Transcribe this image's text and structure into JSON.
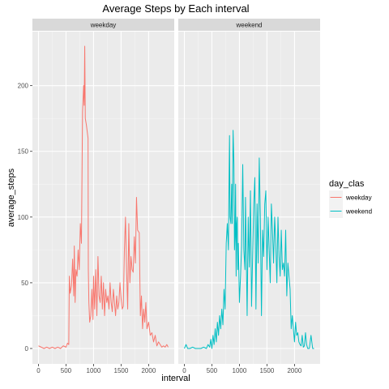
{
  "chart_data": {
    "type": "line",
    "title": "Average Steps by Each interval",
    "xlabel": "interval",
    "ylabel": "average_steps",
    "x_range": [
      0,
      2355
    ],
    "y_range": [
      0,
      230
    ],
    "x_ticks": [
      0,
      500,
      1000,
      1500,
      2000
    ],
    "y_ticks": [
      0,
      50,
      100,
      150,
      200
    ],
    "grid": true,
    "facets": [
      "weekday",
      "weekend"
    ],
    "legend": {
      "title": "day_clas",
      "position": "right"
    },
    "series": [
      {
        "name": "weekday",
        "facet": "weekday",
        "color": "#F8766D",
        "points": [
          [
            0,
            2
          ],
          [
            50,
            1
          ],
          [
            100,
            0
          ],
          [
            150,
            1
          ],
          [
            200,
            0
          ],
          [
            250,
            1
          ],
          [
            300,
            0
          ],
          [
            350,
            1
          ],
          [
            400,
            0
          ],
          [
            450,
            2
          ],
          [
            500,
            1
          ],
          [
            525,
            4
          ],
          [
            550,
            3
          ],
          [
            560,
            55
          ],
          [
            575,
            42
          ],
          [
            600,
            48
          ],
          [
            620,
            68
          ],
          [
            640,
            40
          ],
          [
            650,
            78
          ],
          [
            665,
            35
          ],
          [
            680,
            60
          ],
          [
            700,
            55
          ],
          [
            720,
            75
          ],
          [
            740,
            60
          ],
          [
            760,
            95
          ],
          [
            780,
            80
          ],
          [
            800,
            180
          ],
          [
            810,
            190
          ],
          [
            820,
            200
          ],
          [
            830,
            185
          ],
          [
            840,
            230
          ],
          [
            850,
            175
          ],
          [
            870,
            170
          ],
          [
            900,
            160
          ],
          [
            905,
            60
          ],
          [
            915,
            35
          ],
          [
            930,
            20
          ],
          [
            950,
            25
          ],
          [
            970,
            45
          ],
          [
            990,
            22
          ],
          [
            1000,
            55
          ],
          [
            1020,
            30
          ],
          [
            1040,
            60
          ],
          [
            1060,
            25
          ],
          [
            1080,
            70
          ],
          [
            1100,
            40
          ],
          [
            1120,
            35
          ],
          [
            1140,
            55
          ],
          [
            1160,
            30
          ],
          [
            1180,
            50
          ],
          [
            1200,
            25
          ],
          [
            1220,
            45
          ],
          [
            1240,
            35
          ],
          [
            1260,
            40
          ],
          [
            1280,
            30
          ],
          [
            1300,
            50
          ],
          [
            1320,
            35
          ],
          [
            1340,
            28
          ],
          [
            1360,
            45
          ],
          [
            1380,
            35
          ],
          [
            1400,
            25
          ],
          [
            1420,
            40
          ],
          [
            1440,
            30
          ],
          [
            1460,
            35
          ],
          [
            1480,
            50
          ],
          [
            1500,
            38
          ],
          [
            1520,
            30
          ],
          [
            1540,
            32
          ],
          [
            1560,
            75
          ],
          [
            1580,
            100
          ],
          [
            1600,
            60
          ],
          [
            1620,
            30
          ],
          [
            1640,
            95
          ],
          [
            1660,
            50
          ],
          [
            1680,
            70
          ],
          [
            1700,
            60
          ],
          [
            1720,
            58
          ],
          [
            1740,
            85
          ],
          [
            1760,
            65
          ],
          [
            1780,
            115
          ],
          [
            1800,
            90
          ],
          [
            1830,
            88
          ],
          [
            1850,
            25
          ],
          [
            1870,
            40
          ],
          [
            1890,
            15
          ],
          [
            1910,
            30
          ],
          [
            1930,
            20
          ],
          [
            1950,
            35
          ],
          [
            1970,
            15
          ],
          [
            2000,
            20
          ],
          [
            2030,
            10
          ],
          [
            2060,
            12
          ],
          [
            2090,
            5
          ],
          [
            2120,
            10
          ],
          [
            2150,
            2
          ],
          [
            2180,
            5
          ],
          [
            2210,
            3
          ],
          [
            2240,
            1
          ],
          [
            2270,
            2
          ],
          [
            2300,
            1
          ],
          [
            2330,
            3
          ],
          [
            2355,
            1
          ]
        ]
      },
      {
        "name": "weekend",
        "facet": "weekend",
        "color": "#00BFC4",
        "points": [
          [
            0,
            0
          ],
          [
            30,
            3
          ],
          [
            60,
            0
          ],
          [
            100,
            0
          ],
          [
            150,
            1
          ],
          [
            200,
            0
          ],
          [
            250,
            0
          ],
          [
            300,
            0
          ],
          [
            350,
            1
          ],
          [
            400,
            0
          ],
          [
            430,
            3
          ],
          [
            460,
            1
          ],
          [
            480,
            7
          ],
          [
            500,
            0
          ],
          [
            520,
            10
          ],
          [
            540,
            3
          ],
          [
            560,
            15
          ],
          [
            580,
            5
          ],
          [
            600,
            20
          ],
          [
            620,
            10
          ],
          [
            640,
            25
          ],
          [
            660,
            15
          ],
          [
            680,
            30
          ],
          [
            700,
            18
          ],
          [
            720,
            45
          ],
          [
            740,
            30
          ],
          [
            760,
            80
          ],
          [
            780,
            95
          ],
          [
            800,
            75
          ],
          [
            810,
            120
          ],
          [
            820,
            162
          ],
          [
            830,
            100
          ],
          [
            845,
            95
          ],
          [
            860,
            125
          ],
          [
            870,
            95
          ],
          [
            885,
            166
          ],
          [
            900,
            140
          ],
          [
            910,
            75
          ],
          [
            920,
            85
          ],
          [
            930,
            125
          ],
          [
            940,
            55
          ],
          [
            950,
            95
          ],
          [
            960,
            100
          ],
          [
            970,
            60
          ],
          [
            980,
            80
          ],
          [
            1000,
            35
          ],
          [
            1020,
            55
          ],
          [
            1040,
            78
          ],
          [
            1060,
            140
          ],
          [
            1080,
            75
          ],
          [
            1100,
            60
          ],
          [
            1110,
            115
          ],
          [
            1120,
            85
          ],
          [
            1140,
            25
          ],
          [
            1160,
            100
          ],
          [
            1180,
            62
          ],
          [
            1200,
            120
          ],
          [
            1220,
            32
          ],
          [
            1240,
            70
          ],
          [
            1260,
            110
          ],
          [
            1280,
            130
          ],
          [
            1300,
            30
          ],
          [
            1320,
            110
          ],
          [
            1340,
            65
          ],
          [
            1360,
            145
          ],
          [
            1380,
            100
          ],
          [
            1400,
            25
          ],
          [
            1420,
            90
          ],
          [
            1440,
            70
          ],
          [
            1460,
            110
          ],
          [
            1480,
            120
          ],
          [
            1500,
            60
          ],
          [
            1520,
            100
          ],
          [
            1540,
            75
          ],
          [
            1560,
            50
          ],
          [
            1580,
            110
          ],
          [
            1600,
            90
          ],
          [
            1620,
            65
          ],
          [
            1640,
            100
          ],
          [
            1660,
            80
          ],
          [
            1680,
            50
          ],
          [
            1700,
            100
          ],
          [
            1720,
            70
          ],
          [
            1740,
            55
          ],
          [
            1760,
            90
          ],
          [
            1780,
            60
          ],
          [
            1800,
            65
          ],
          [
            1820,
            55
          ],
          [
            1840,
            90
          ],
          [
            1860,
            40
          ],
          [
            1880,
            65
          ],
          [
            1900,
            55
          ],
          [
            1920,
            45
          ],
          [
            1940,
            15
          ],
          [
            1960,
            25
          ],
          [
            1980,
            15
          ],
          [
            2000,
            5
          ],
          [
            2020,
            20
          ],
          [
            2040,
            10
          ],
          [
            2060,
            12
          ],
          [
            2080,
            5
          ],
          [
            2100,
            3
          ],
          [
            2120,
            2
          ],
          [
            2140,
            10
          ],
          [
            2160,
            1
          ],
          [
            2180,
            2
          ],
          [
            2200,
            12
          ],
          [
            2220,
            3
          ],
          [
            2240,
            0
          ],
          [
            2270,
            0
          ],
          [
            2300,
            10
          ],
          [
            2330,
            0
          ],
          [
            2355,
            0
          ]
        ]
      }
    ]
  }
}
